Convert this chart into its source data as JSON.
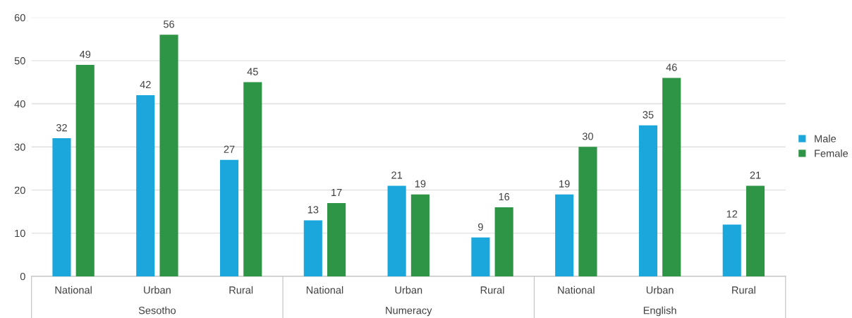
{
  "chart_data": {
    "type": "bar",
    "categories": [
      "National",
      "Urban",
      "Rural",
      "National",
      "Urban",
      "Rural",
      "National",
      "Urban",
      "Rural"
    ],
    "series": [
      {
        "name": "Male",
        "color": "#1ba7dc",
        "values": [
          32,
          42,
          27,
          13,
          21,
          9,
          19,
          35,
          12
        ]
      },
      {
        "name": "Female",
        "color": "#2e9446",
        "values": [
          49,
          56,
          45,
          17,
          19,
          16,
          30,
          46,
          21
        ]
      }
    ],
    "annotations": [
      "Sesotho",
      "Numeracy",
      "English"
    ],
    "ylim": [
      0,
      60
    ],
    "yticks": [
      0,
      10,
      20,
      30,
      40,
      50,
      60
    ],
    "grid": "y",
    "legend": "right",
    "data_labels": true
  }
}
